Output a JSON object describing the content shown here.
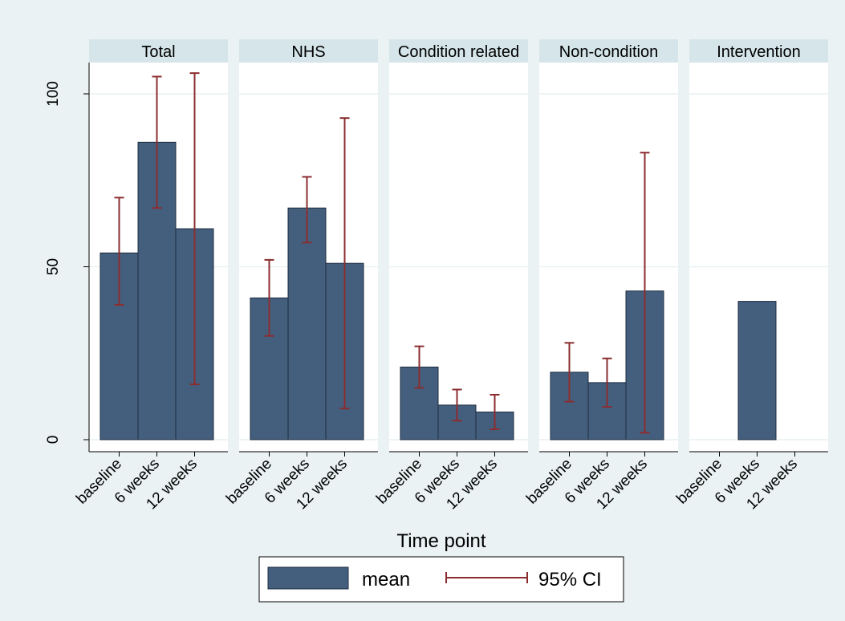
{
  "chart_data": {
    "type": "bar",
    "panels": [
      "Total",
      "NHS",
      "Condition related",
      "Non-condition",
      "Intervention"
    ],
    "categories": [
      "baseline",
      "6 weeks",
      "12 weeks"
    ],
    "series": [
      {
        "name": "mean",
        "values": [
          [
            54,
            86,
            61
          ],
          [
            41,
            67,
            51
          ],
          [
            21,
            10,
            8
          ],
          [
            19.5,
            16.5,
            43
          ],
          [
            null,
            40,
            null
          ]
        ]
      },
      {
        "name": "95% CI",
        "intervals": [
          [
            [
              39,
              70
            ],
            [
              67,
              105
            ],
            [
              16,
              106
            ]
          ],
          [
            [
              30,
              52
            ],
            [
              57,
              76
            ],
            [
              9,
              93
            ]
          ],
          [
            [
              15,
              27
            ],
            [
              5.5,
              14.5
            ],
            [
              3,
              13
            ]
          ],
          [
            [
              11,
              28
            ],
            [
              9.5,
              23.5
            ],
            [
              2,
              83
            ]
          ],
          [
            null,
            null,
            null
          ]
        ]
      }
    ],
    "xlabel": "Time point",
    "ylabel": "",
    "ylim": [
      0,
      100
    ],
    "yticks": [
      0,
      50,
      100
    ],
    "ytick_labels": [
      "0",
      "50",
      "100"
    ],
    "grid": true,
    "legend": "bottom-center",
    "colors": {
      "bar": "#445f7e",
      "bar_edge": "#1e2c3f",
      "ci": "#8b2c2f",
      "strip": "#d5e5e9",
      "background": "#eaf2f3",
      "panel": "#ffffff",
      "grid": "#e8f1f2"
    }
  }
}
